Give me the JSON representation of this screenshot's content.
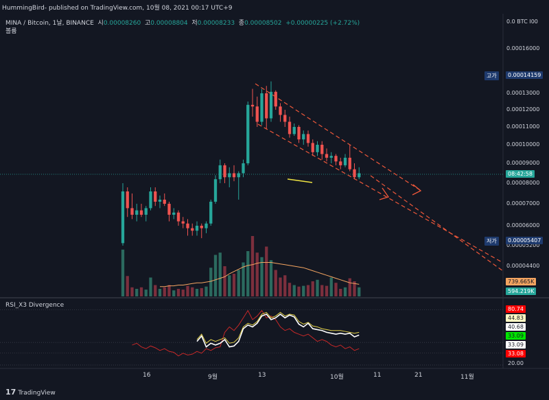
{
  "header": {
    "published": "HummingBird- published on TradingView.com, 10월 08, 2021 00:17 UTC+9"
  },
  "symbol": {
    "name": "MINA / Bitcoin, 1날, BINANCE",
    "open_label": "시",
    "open": "0.00008260",
    "high_label": "고",
    "high": "0.00008804",
    "low_label": "저",
    "low": "0.00008233",
    "close_label": "종",
    "close": "0.00008502",
    "change": "+0.00000225 (+2.72%)"
  },
  "volume_label": "볼륨",
  "rsi_label": "RSI_X3 Divergence",
  "footer": {
    "brand": "TradingView",
    "logo": "17"
  },
  "colors": {
    "up": "#26a69a",
    "down": "#ef5350",
    "bg": "#131722",
    "grid": "#1e222d",
    "trend": "#f0583a",
    "high_tag": "#1e3a6d",
    "low_tag": "#1e3a6d"
  },
  "chart_data": {
    "type": "candlestick",
    "price_axis": {
      "unit": "BTC",
      "currency_label": "BTC",
      "top_label": "0.0",
      "ticks": [
        "0.00016000",
        "0.00013000",
        "0.00012000",
        "0.00011000",
        "0.00010000",
        "0.00009000",
        "0.00008000",
        "0.00007000",
        "0.00006000",
        "0.00005200",
        "0.00004400"
      ],
      "high_label": "고가",
      "high_value": "0.00014159",
      "low_label": "저가",
      "low_value": "0.00005407",
      "countdown": "08:42:58",
      "volume_ma": "739.665K",
      "volume_last": "594.219K"
    },
    "x_ticks": [
      "16",
      "9월",
      "13",
      "10월",
      "11",
      "21",
      "11월"
    ],
    "candles": [
      {
        "o": 5.3,
        "h": 8.0,
        "l": 5.2,
        "c": 7.6
      },
      {
        "o": 7.6,
        "h": 7.8,
        "l": 6.4,
        "c": 6.8
      },
      {
        "o": 6.8,
        "h": 7.5,
        "l": 6.3,
        "c": 6.5
      },
      {
        "o": 6.5,
        "h": 7.0,
        "l": 6.2,
        "c": 6.7
      },
      {
        "o": 6.7,
        "h": 7.0,
        "l": 6.4,
        "c": 6.5
      },
      {
        "o": 6.5,
        "h": 6.9,
        "l": 6.2,
        "c": 6.8
      },
      {
        "o": 6.8,
        "h": 7.8,
        "l": 6.7,
        "c": 7.6
      },
      {
        "o": 7.6,
        "h": 7.8,
        "l": 6.9,
        "c": 7.1
      },
      {
        "o": 7.1,
        "h": 7.4,
        "l": 6.8,
        "c": 7.2
      },
      {
        "o": 7.2,
        "h": 7.5,
        "l": 6.9,
        "c": 7.0
      },
      {
        "o": 7.0,
        "h": 7.1,
        "l": 6.2,
        "c": 6.5
      },
      {
        "o": 6.5,
        "h": 6.8,
        "l": 6.3,
        "c": 6.6
      },
      {
        "o": 6.6,
        "h": 6.7,
        "l": 6.0,
        "c": 6.2
      },
      {
        "o": 6.2,
        "h": 6.4,
        "l": 5.9,
        "c": 6.1
      },
      {
        "o": 6.1,
        "h": 6.3,
        "l": 5.6,
        "c": 5.9
      },
      {
        "o": 5.9,
        "h": 6.1,
        "l": 5.6,
        "c": 5.8
      },
      {
        "o": 5.8,
        "h": 6.2,
        "l": 5.6,
        "c": 6.0
      },
      {
        "o": 6.0,
        "h": 6.1,
        "l": 5.5,
        "c": 5.9
      },
      {
        "o": 5.9,
        "h": 6.2,
        "l": 5.7,
        "c": 6.1
      },
      {
        "o": 6.1,
        "h": 7.2,
        "l": 6.0,
        "c": 7.1
      },
      {
        "o": 7.1,
        "h": 8.4,
        "l": 7.0,
        "c": 8.2
      },
      {
        "o": 8.2,
        "h": 9.2,
        "l": 8.0,
        "c": 8.9
      },
      {
        "o": 8.9,
        "h": 9.0,
        "l": 8.0,
        "c": 8.3
      },
      {
        "o": 8.3,
        "h": 8.8,
        "l": 7.8,
        "c": 8.5
      },
      {
        "o": 8.5,
        "h": 8.9,
        "l": 8.1,
        "c": 8.3
      },
      {
        "o": 8.3,
        "h": 8.6,
        "l": 7.2,
        "c": 8.5
      },
      {
        "o": 8.5,
        "h": 9.2,
        "l": 8.3,
        "c": 9.0
      },
      {
        "o": 9.0,
        "h": 12.5,
        "l": 8.9,
        "c": 12.3
      },
      {
        "o": 12.3,
        "h": 13.3,
        "l": 11.6,
        "c": 12.2
      },
      {
        "o": 12.2,
        "h": 12.8,
        "l": 11.0,
        "c": 11.3
      },
      {
        "o": 11.3,
        "h": 13.3,
        "l": 11.1,
        "c": 13.0
      },
      {
        "o": 13.0,
        "h": 13.5,
        "l": 10.9,
        "c": 11.5
      },
      {
        "o": 11.5,
        "h": 13.8,
        "l": 11.3,
        "c": 13.1
      },
      {
        "o": 13.1,
        "h": 13.2,
        "l": 12.0,
        "c": 12.2
      },
      {
        "o": 12.2,
        "h": 12.4,
        "l": 11.3,
        "c": 11.7
      },
      {
        "o": 11.7,
        "h": 12.0,
        "l": 11.0,
        "c": 11.3
      },
      {
        "o": 11.3,
        "h": 11.6,
        "l": 10.4,
        "c": 10.6
      },
      {
        "o": 10.6,
        "h": 11.2,
        "l": 10.5,
        "c": 11.0
      },
      {
        "o": 11.0,
        "h": 11.1,
        "l": 10.1,
        "c": 10.3
      },
      {
        "o": 10.3,
        "h": 10.8,
        "l": 10.0,
        "c": 10.6
      },
      {
        "o": 10.6,
        "h": 10.8,
        "l": 9.9,
        "c": 10.1
      },
      {
        "o": 10.1,
        "h": 10.3,
        "l": 9.4,
        "c": 9.6
      },
      {
        "o": 9.6,
        "h": 10.2,
        "l": 9.4,
        "c": 10.0
      },
      {
        "o": 10.0,
        "h": 10.2,
        "l": 9.2,
        "c": 9.5
      },
      {
        "o": 9.5,
        "h": 9.8,
        "l": 9.1,
        "c": 9.3
      },
      {
        "o": 9.3,
        "h": 9.6,
        "l": 9.0,
        "c": 9.4
      },
      {
        "o": 9.4,
        "h": 9.5,
        "l": 8.9,
        "c": 9.1
      },
      {
        "o": 9.1,
        "h": 9.3,
        "l": 8.7,
        "c": 8.9
      },
      {
        "o": 8.9,
        "h": 9.5,
        "l": 8.8,
        "c": 9.3
      },
      {
        "o": 9.3,
        "h": 10.0,
        "l": 8.6,
        "c": 8.7
      },
      {
        "o": 8.7,
        "h": 9.0,
        "l": 8.2,
        "c": 8.3
      },
      {
        "o": 8.3,
        "h": 8.8,
        "l": 8.2,
        "c": 8.5
      }
    ],
    "volume": [
      0.62,
      0.27,
      0.12,
      0.1,
      0.12,
      0.09,
      0.25,
      0.15,
      0.1,
      0.12,
      0.15,
      0.08,
      0.1,
      0.09,
      0.14,
      0.12,
      0.1,
      0.11,
      0.13,
      0.38,
      0.55,
      0.58,
      0.4,
      0.28,
      0.3,
      0.35,
      0.45,
      0.6,
      0.8,
      0.58,
      0.52,
      0.66,
      0.48,
      0.35,
      0.25,
      0.28,
      0.18,
      0.15,
      0.13,
      0.14,
      0.15,
      0.2,
      0.22,
      0.15,
      0.14,
      0.25,
      0.18,
      0.1,
      0.12,
      0.24,
      0.2,
      0.12
    ],
    "volume_ma": [
      0.13,
      0.13,
      0.14,
      0.14,
      0.15,
      0.15,
      0.16,
      0.17,
      0.18,
      0.18,
      0.19,
      0.2,
      0.22,
      0.24,
      0.26,
      0.3,
      0.33,
      0.36,
      0.39,
      0.41,
      0.42,
      0.44,
      0.45,
      0.45,
      0.45,
      0.44,
      0.43,
      0.42,
      0.41,
      0.4,
      0.39,
      0.38,
      0.36,
      0.34,
      0.32,
      0.3,
      0.28,
      0.26,
      0.24,
      0.22,
      0.2,
      0.18,
      0.17,
      0.16
    ],
    "rsi": {
      "white": [
        46,
        52,
        40,
        44,
        42,
        44,
        48,
        40,
        41,
        46,
        60,
        64,
        62,
        66,
        74,
        76,
        70,
        72,
        76,
        72,
        75,
        73,
        65,
        62,
        66,
        60,
        59,
        58,
        56,
        55,
        54,
        55,
        54,
        55,
        51,
        53
      ],
      "yellow": [
        48,
        54,
        44,
        48,
        46,
        48,
        50,
        44,
        45,
        50,
        62,
        66,
        64,
        68,
        76,
        78,
        72,
        74,
        78,
        74,
        76,
        75,
        68,
        65,
        67,
        63,
        62,
        60,
        59,
        58,
        58,
        58,
        57,
        56,
        55,
        56
      ],
      "red": [
        42,
        44,
        40,
        38,
        41,
        39,
        36,
        38,
        35,
        34,
        30,
        33,
        31,
        32,
        35,
        33,
        38,
        36,
        39,
        40,
        56,
        62,
        58,
        64,
        72,
        80,
        70,
        74,
        80,
        72,
        74,
        70,
        62,
        58,
        60,
        56,
        54,
        52,
        54,
        50,
        46,
        48,
        46,
        42,
        40,
        42,
        38,
        40,
        36,
        38
      ],
      "levels": [
        "80.74",
        "44.83",
        "40.68",
        "33.09",
        "33.09",
        "33.08",
        "20.00"
      ]
    }
  }
}
